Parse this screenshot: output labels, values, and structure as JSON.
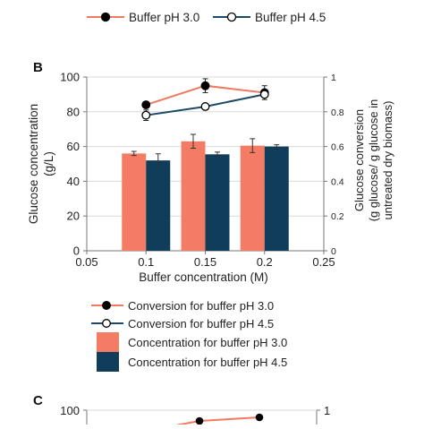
{
  "top_legend": [
    {
      "label": "Buffer pH 3.0",
      "marker": "filled-circle",
      "line_color": "#f07a5f"
    },
    {
      "label": "Buffer pH 4.5",
      "marker": "open-circle",
      "line_color": "#1d4a66"
    }
  ],
  "panel_b": {
    "panel_label": "B",
    "bottom_legend": [
      {
        "label": "Conversion for buffer pH 3.0",
        "kind": "line-filled-circle",
        "color": "#f07a5f"
      },
      {
        "label": "Conversion for buffer pH 4.5",
        "kind": "line-open-circle",
        "color": "#1d4a66"
      },
      {
        "label": "Concentration for buffer pH 3.0",
        "kind": "box",
        "color": "#f47c64"
      },
      {
        "label": "Concentration for buffer pH 4.5",
        "kind": "box",
        "color": "#0f3d5a"
      }
    ]
  },
  "panel_c": {
    "panel_label": "C",
    "y_left_visible_tick": "100",
    "y_right_visible_tick": "1",
    "points_pH30": [
      0.85,
      0.9
    ]
  },
  "colors": {
    "salmon": "#f47c64",
    "navy": "#0f3d5a",
    "line_salmon": "#f07a5f",
    "line_navy": "#1d4a66",
    "axis": "#777777"
  },
  "chart_data": [
    {
      "type": "bar",
      "panel": "B",
      "xlabel": "Buffer concentration (M)",
      "ylabel": "Glucose concentration (g/L)",
      "y2label": "Glucose conversion (g glucose/ g glucose in untreated dry biomass)",
      "x_ticks": [
        "0.05",
        "0.1",
        "0.15",
        "0.2",
        "0.25"
      ],
      "xlim": [
        0.05,
        0.25
      ],
      "ylim": [
        0,
        100
      ],
      "y_ticks": [
        "0",
        "20",
        "40",
        "60",
        "80",
        "100"
      ],
      "y2lim": [
        0,
        1
      ],
      "y2_ticks": [
        "0",
        "0.2",
        "0.4",
        "0.6",
        "0.8",
        "1"
      ],
      "grid": "horizontal",
      "categories": [
        0.1,
        0.15,
        0.2
      ],
      "bar_series": [
        {
          "name": "Concentration for buffer pH 3.0",
          "values": [
            56,
            63,
            60.5
          ],
          "errors": [
            1.2,
            4,
            4
          ]
        },
        {
          "name": "Concentration for buffer pH 4.5",
          "values": [
            52,
            55.5,
            60
          ],
          "errors": [
            3.8,
            1.3,
            1
          ]
        }
      ],
      "line_series": [
        {
          "name": "Conversion for buffer pH 3.0",
          "axis": "right",
          "x": [
            0.1,
            0.15,
            0.2
          ],
          "values": [
            0.84,
            0.95,
            0.91
          ],
          "errors": [
            0.01,
            0.04,
            0.04
          ]
        },
        {
          "name": "Conversion for buffer pH 4.5",
          "axis": "right",
          "x": [
            0.1,
            0.15,
            0.2
          ],
          "values": [
            0.78,
            0.83,
            0.9
          ],
          "errors": [
            0.03,
            0.01,
            0.01
          ]
        }
      ]
    }
  ]
}
